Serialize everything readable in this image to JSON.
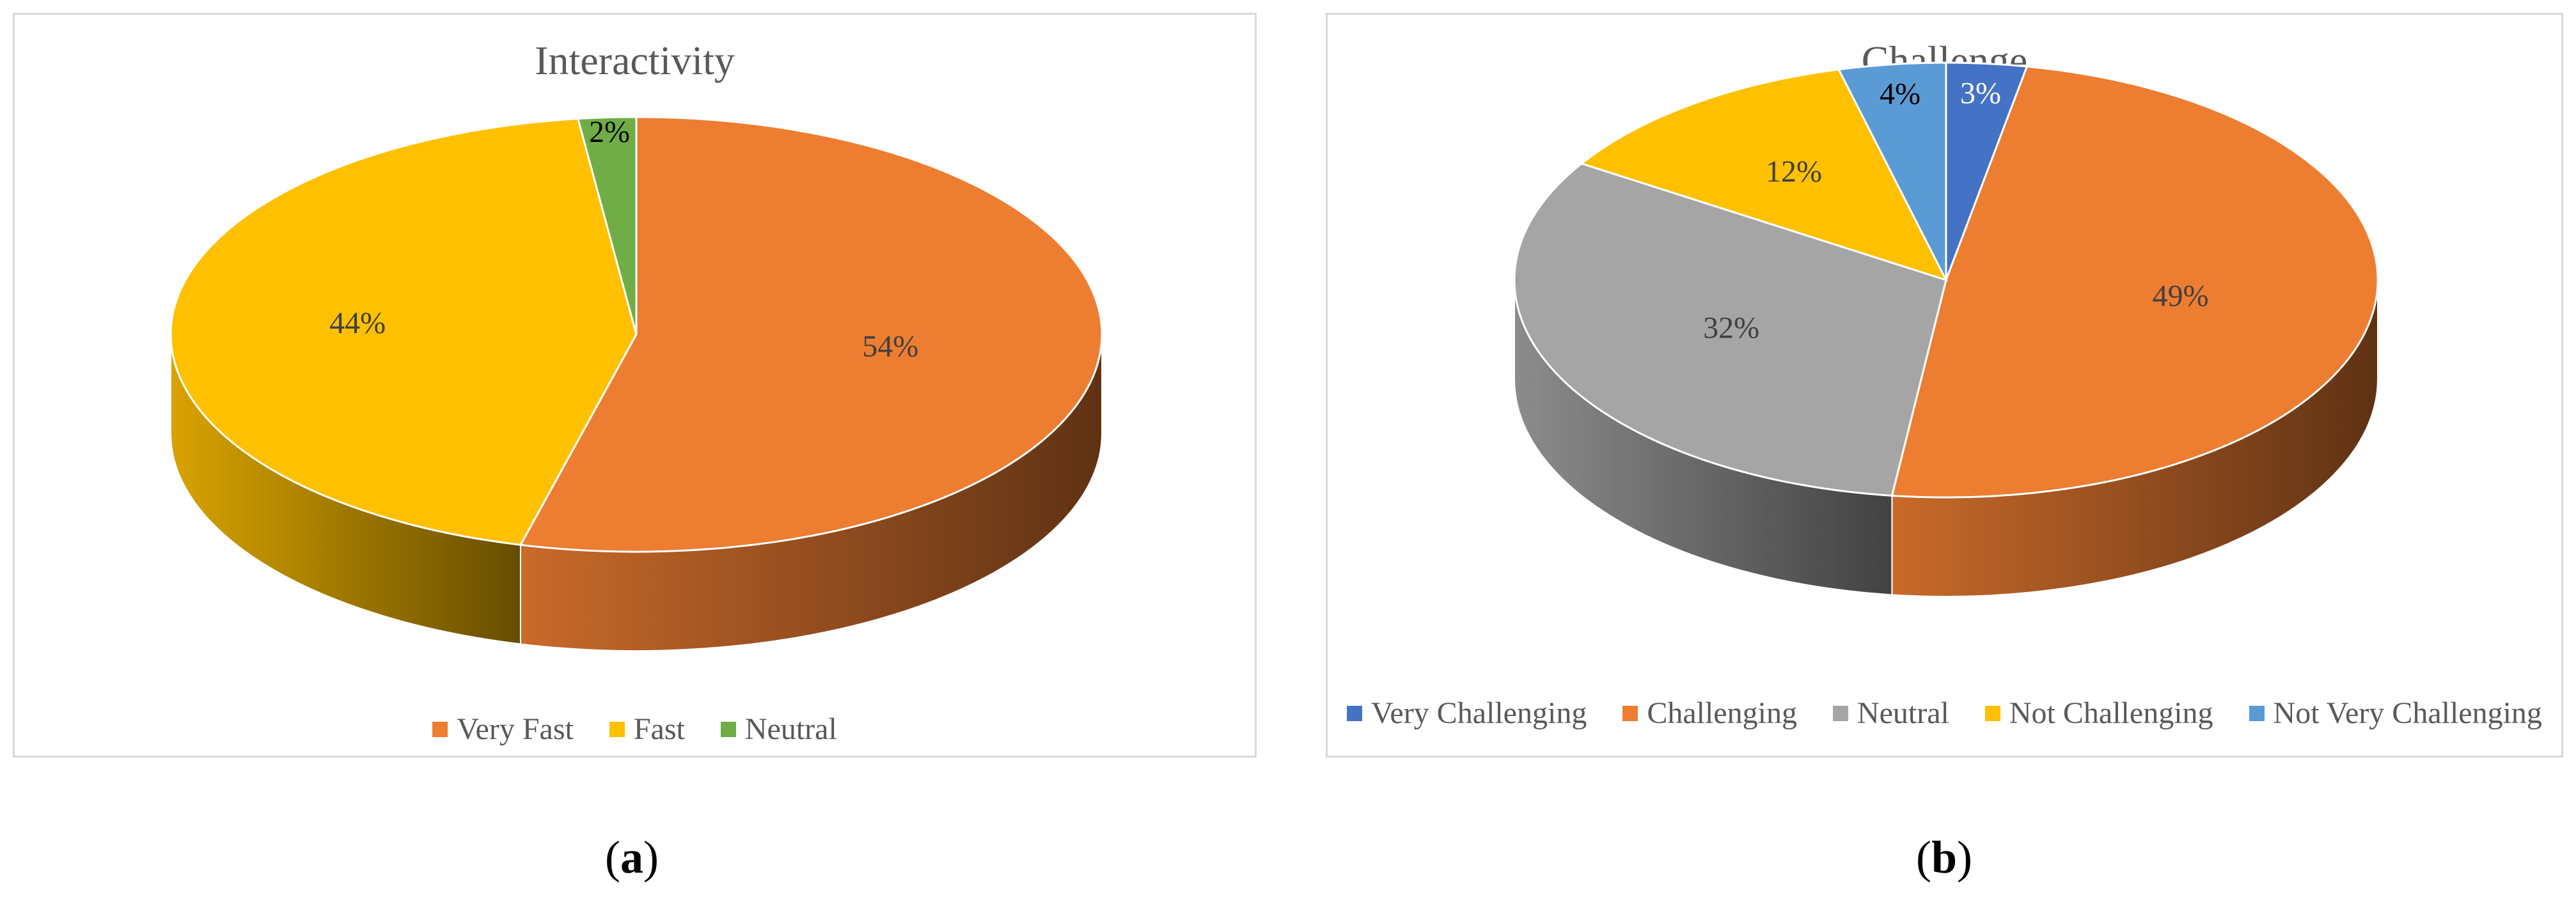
{
  "chart_data": [
    {
      "type": "pie",
      "title": "Interactivity",
      "panel_label": "a",
      "slices": [
        {
          "name": "Very Fast",
          "value": 54,
          "label": "54%",
          "color": "#ED7D31",
          "label_color": "#404040"
        },
        {
          "name": "Fast",
          "value": 44,
          "label": "44%",
          "color": "#FFC000",
          "label_color": "#404040"
        },
        {
          "name": "Neutral",
          "value": 2,
          "label": "2%",
          "color": "#70AD47",
          "label_color": "#000000"
        }
      ],
      "legend": [
        "Very Fast",
        "Fast",
        "Neutral"
      ],
      "legend_position": "bottom"
    },
    {
      "type": "pie",
      "title": "Challenge",
      "panel_label": "b",
      "slices": [
        {
          "name": "Very Challenging",
          "value": 3,
          "label": "3%",
          "color": "#4472C4",
          "label_color": "#ffffff"
        },
        {
          "name": "Challenging",
          "value": 49,
          "label": "49%",
          "color": "#ED7D31",
          "label_color": "#404040"
        },
        {
          "name": "Neutral",
          "value": 32,
          "label": "32%",
          "color": "#A5A5A5",
          "label_color": "#404040"
        },
        {
          "name": "Not Challenging",
          "value": 12,
          "label": "12%",
          "color": "#FFC000",
          "label_color": "#404040"
        },
        {
          "name": "Not Very Challenging",
          "value": 4,
          "label": "4%",
          "color": "#5B9BD5",
          "label_color": "#000000"
        }
      ],
      "legend": [
        "Very Challenging",
        "Challenging",
        "Neutral",
        "Not Challenging",
        "Not Very Challenging"
      ],
      "legend_position": "bottom"
    }
  ]
}
